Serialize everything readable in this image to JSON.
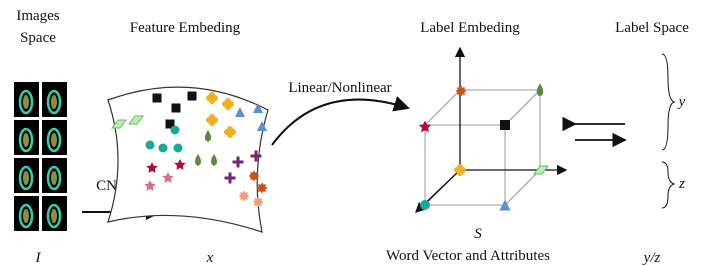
{
  "image_space": {
    "title": [
      "Images",
      "Space"
    ],
    "symbol": "I"
  },
  "feature_embedding": {
    "title": "Feature Embeding",
    "symbol": "x"
  },
  "arrows": {
    "cnn": "CNN",
    "mapping": "Linear/Nonlinear"
  },
  "label_embedding": {
    "title": "Label Embeding",
    "axis": "S",
    "caption": "Word Vector and Attributes"
  },
  "label_space": {
    "title": "Label Space",
    "symbol": "y/z",
    "brackets": [
      "y",
      "z"
    ]
  }
}
